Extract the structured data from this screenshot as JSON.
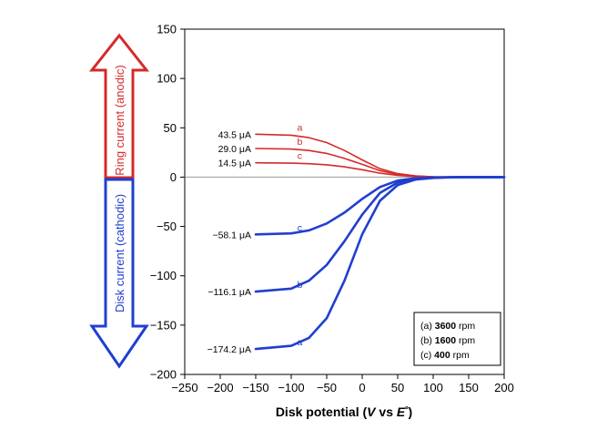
{
  "chart_data": {
    "type": "line",
    "xlabel_parts": [
      "Disk potential (",
      "V",
      " vs ",
      "E",
      "º",
      ")"
    ],
    "xlim": [
      -250,
      200
    ],
    "ylim": [
      -200,
      150
    ],
    "xticks": [
      -250,
      -200,
      -150,
      -100,
      -50,
      0,
      50,
      100,
      150,
      200
    ],
    "yticks": [
      -200,
      -150,
      -100,
      -50,
      0,
      50,
      100,
      150
    ],
    "xtick_labels": [
      "−250",
      "−200",
      "−150",
      "−100",
      "−50",
      "0",
      "50",
      "100",
      "150",
      "200"
    ],
    "ytick_labels": [
      "−200",
      "−150",
      "−100",
      "−50",
      "0",
      "50",
      "100",
      "150"
    ],
    "grid": false,
    "zero_line": true,
    "colors": {
      "ring": "#d42a2a",
      "disk": "#1f3fd0",
      "zero_line": "#999999"
    },
    "series": [
      {
        "group": "ring",
        "letter": "a",
        "plateau_label": "43.5 μA",
        "x": [
          -150,
          -100,
          -75,
          -50,
          -25,
          0,
          25,
          50,
          75,
          100,
          125,
          150,
          200
        ],
        "y": [
          43.5,
          42.5,
          40,
          35,
          27,
          17.5,
          8.5,
          3.5,
          1.2,
          0.4,
          0.1,
          0,
          0
        ]
      },
      {
        "group": "ring",
        "letter": "b",
        "plateau_label": "29.0 μA",
        "x": [
          -150,
          -100,
          -75,
          -50,
          -25,
          0,
          25,
          50,
          75,
          100,
          125,
          150,
          200
        ],
        "y": [
          29,
          28.5,
          27,
          24,
          19,
          13,
          6.5,
          2.7,
          1,
          0.3,
          0.1,
          0,
          0
        ]
      },
      {
        "group": "ring",
        "letter": "c",
        "plateau_label": "14.5 μA",
        "x": [
          -150,
          -100,
          -75,
          -50,
          -25,
          0,
          25,
          50,
          75,
          100,
          125,
          150,
          200
        ],
        "y": [
          14.5,
          14.2,
          13.6,
          12.5,
          10.5,
          7.5,
          4,
          1.8,
          0.7,
          0.2,
          0.1,
          0,
          0
        ]
      },
      {
        "group": "disk",
        "letter": "c",
        "plateau_label": "−58.1 μA",
        "x": [
          -150,
          -100,
          -75,
          -50,
          -25,
          0,
          25,
          50,
          75,
          100,
          125,
          150,
          200
        ],
        "y": [
          -58.1,
          -57,
          -54,
          -47,
          -36,
          -22,
          -10,
          -3.5,
          -1.2,
          -0.4,
          -0.1,
          0,
          0
        ]
      },
      {
        "group": "disk",
        "letter": "b",
        "plateau_label": "−116.1 μA",
        "x": [
          -150,
          -100,
          -75,
          -50,
          -25,
          0,
          25,
          50,
          75,
          100,
          125,
          150,
          200
        ],
        "y": [
          -116.1,
          -113,
          -105,
          -89,
          -65,
          -38,
          -16,
          -5.5,
          -1.8,
          -0.6,
          -0.2,
          0,
          0
        ]
      },
      {
        "group": "disk",
        "letter": "a",
        "plateau_label": "−174.2 μA",
        "x": [
          -150,
          -100,
          -75,
          -50,
          -25,
          0,
          25,
          50,
          75,
          100,
          125,
          150,
          200
        ],
        "y": [
          -174.2,
          -171,
          -163,
          -143,
          -105,
          -58,
          -24,
          -8,
          -2.5,
          -0.8,
          -0.2,
          0,
          0
        ]
      }
    ],
    "legend": {
      "position": "bottom-right",
      "entries": [
        {
          "prefix": "(a) ",
          "value": "3600",
          "unit": " rpm"
        },
        {
          "prefix": "(b) ",
          "value": "1600",
          "unit": " rpm"
        },
        {
          "prefix": "(c) ",
          "value": "400",
          "unit": " rpm"
        }
      ]
    },
    "arrows": {
      "up_label": "Ring current (anodic)",
      "down_label": "Disk current (cathodic)"
    }
  }
}
